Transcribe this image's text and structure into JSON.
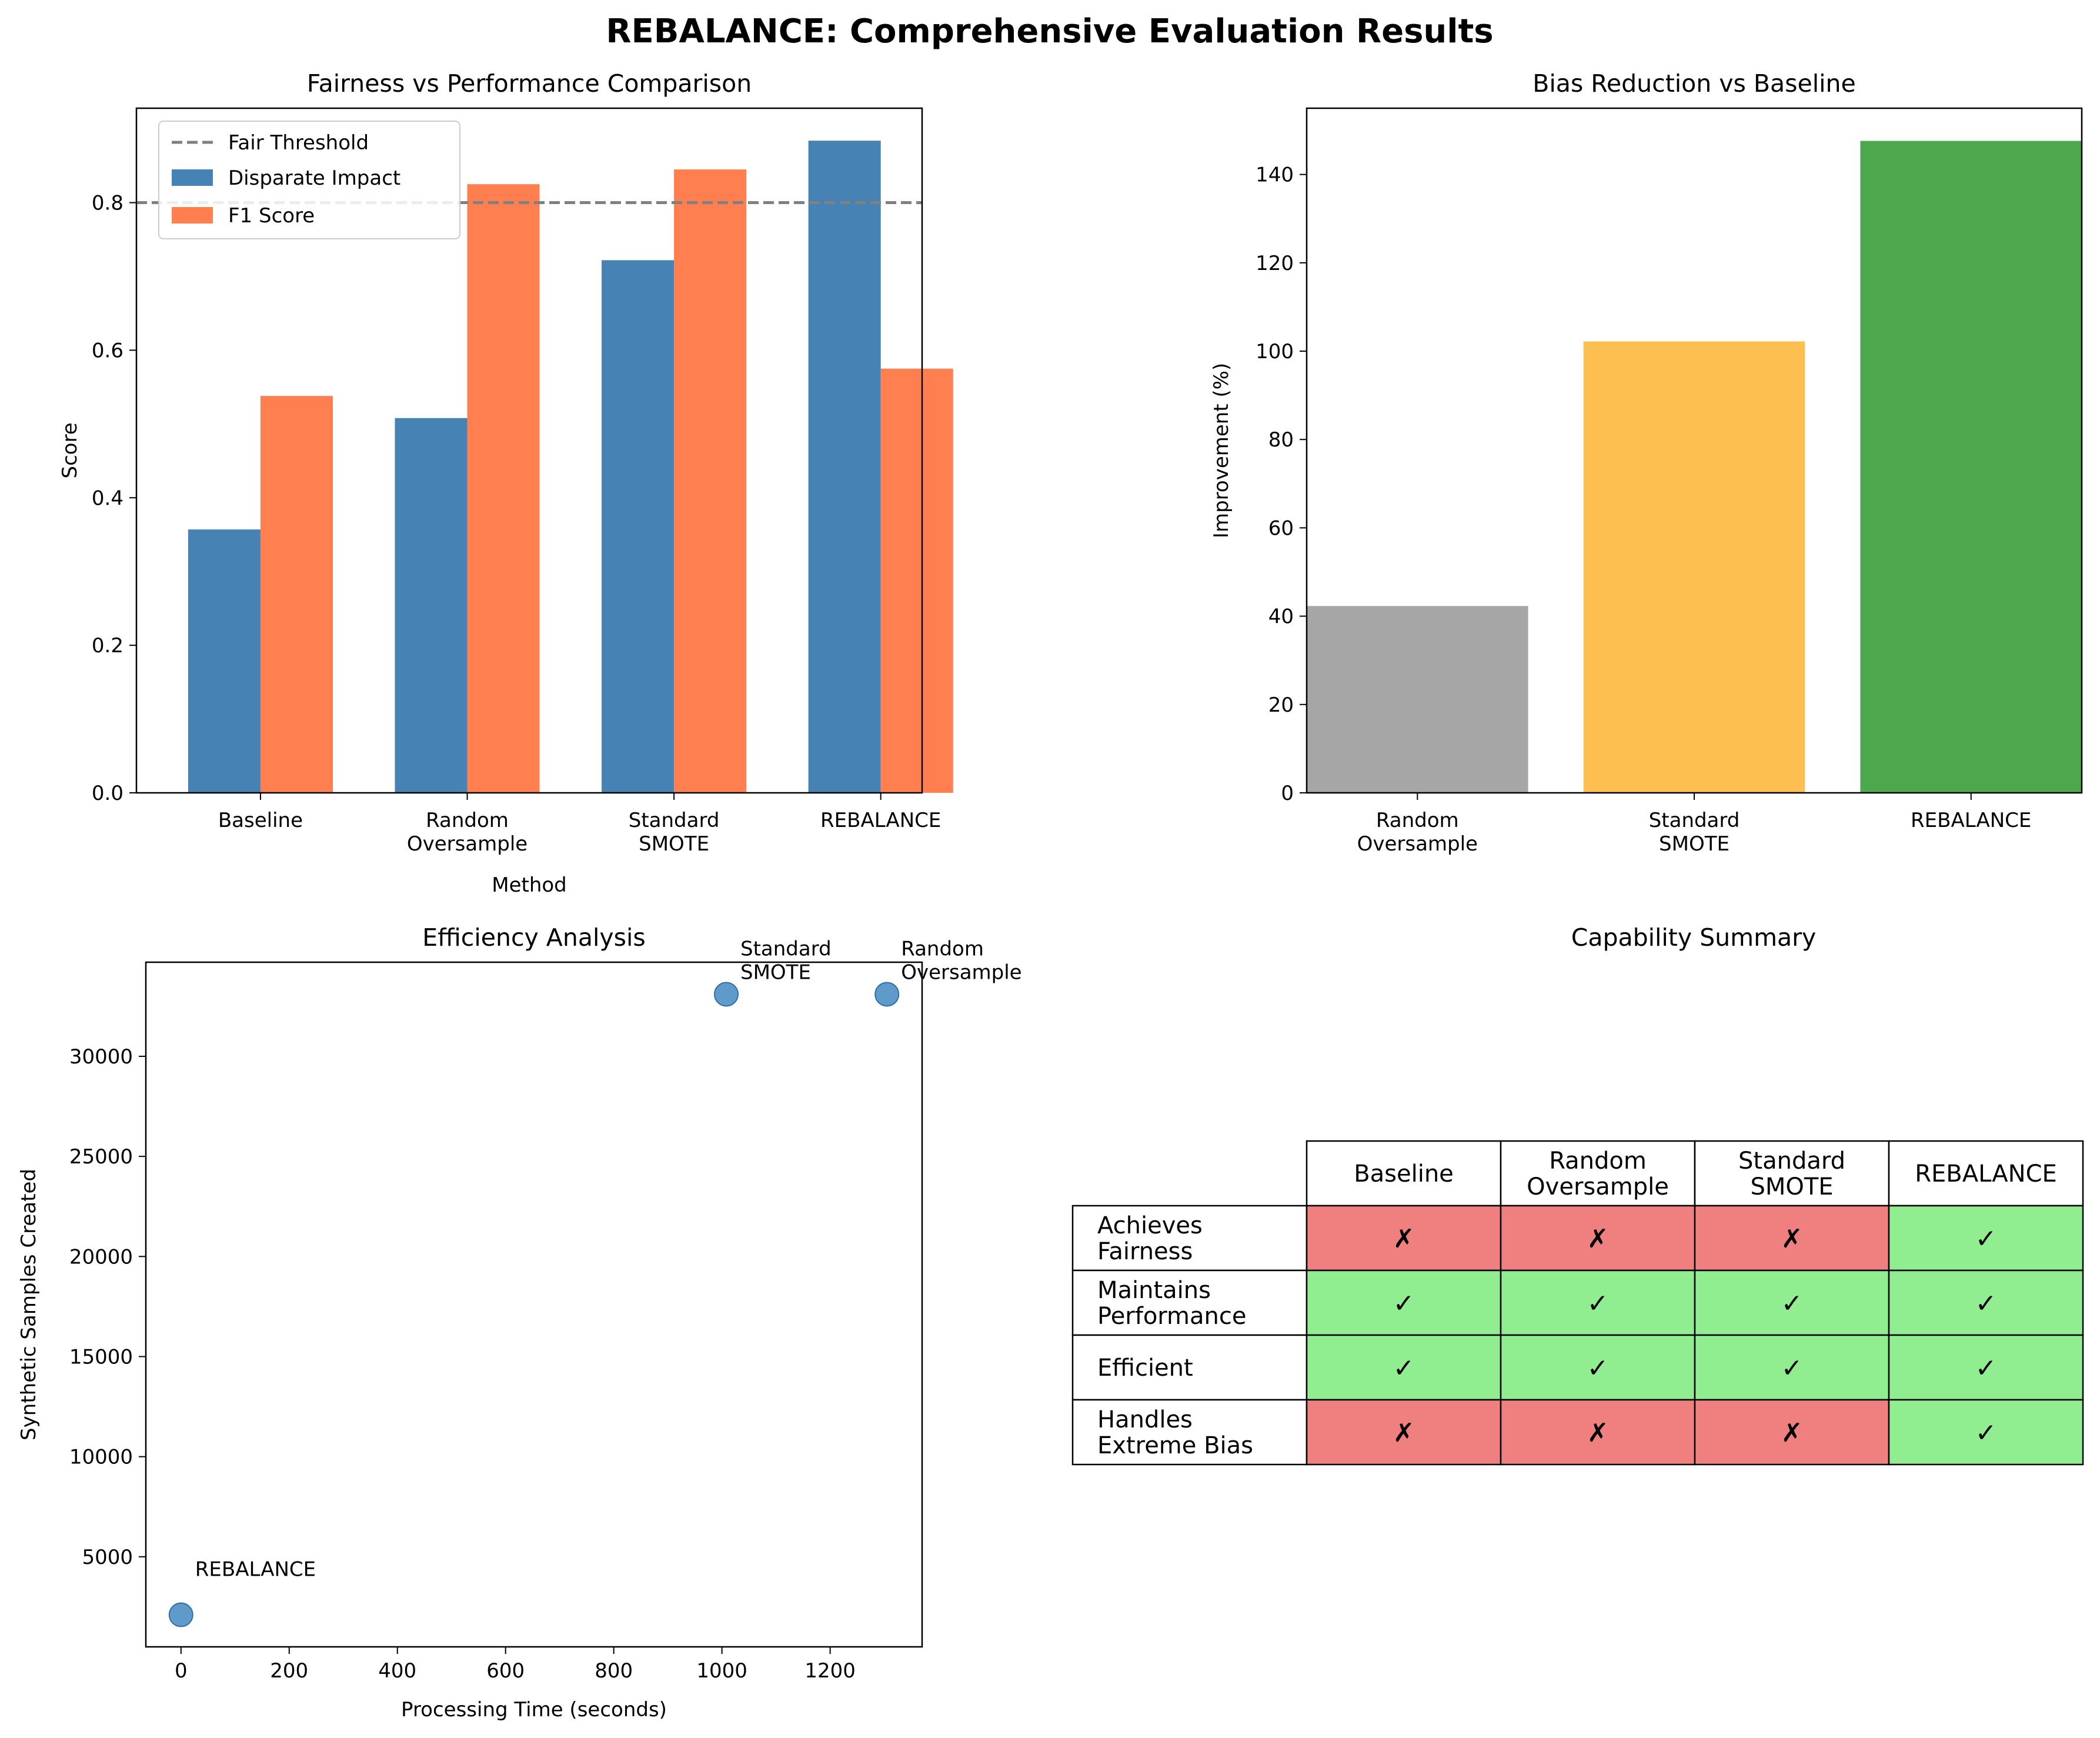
{
  "figure": {
    "title": "REBALANCE: Comprehensive Evaluation Results"
  },
  "chart_data": [
    {
      "id": "fairness",
      "type": "bar",
      "title": "Fairness vs Performance Comparison",
      "xlabel": "Method",
      "ylabel": "Score",
      "categories": [
        "Baseline",
        "Random\nOversample",
        "Standard\nSMOTE",
        "REBALANCE"
      ],
      "series": [
        {
          "name": "Disparate Impact",
          "color": "#4682B4",
          "values": [
            0.357,
            0.508,
            0.722,
            0.884
          ]
        },
        {
          "name": "F1 Score",
          "color": "#FF7F50",
          "values": [
            0.538,
            0.825,
            0.845,
            0.575
          ]
        }
      ],
      "reference_line": {
        "name": "Fair Threshold",
        "value": 0.8,
        "color": "#808080",
        "style": "dashed"
      },
      "ylim": [
        0,
        0.928
      ],
      "yticks": [
        0.0,
        0.2,
        0.4,
        0.6,
        0.8
      ],
      "ytick_labels": [
        "0.0",
        "0.2",
        "0.4",
        "0.6",
        "0.8"
      ],
      "legend": "top-left",
      "grid": false
    },
    {
      "id": "bias",
      "type": "bar",
      "title": "Bias Reduction vs Baseline",
      "xlabel": "",
      "ylabel": "Improvement (%)",
      "categories": [
        "Random\nOversample",
        "Standard\nSMOTE",
        "REBALANCE"
      ],
      "values": [
        42.3,
        102.2,
        147.6
      ],
      "colors": [
        "#A6A6A6",
        "#FDBF4F",
        "#4DA84D"
      ],
      "ylim": [
        0,
        155
      ],
      "yticks": [
        0,
        20,
        40,
        60,
        80,
        100,
        120,
        140
      ],
      "ytick_labels": [
        "0",
        "20",
        "40",
        "60",
        "80",
        "100",
        "120",
        "140"
      ],
      "grid": false
    },
    {
      "id": "efficiency",
      "type": "scatter",
      "title": "Efficiency Analysis",
      "xlabel": "Processing Time (seconds)",
      "ylabel": "Synthetic Samples Created",
      "points": [
        {
          "label": "Standard\nSMOTE",
          "x": 1008,
          "y": 33100
        },
        {
          "label": "Random\nOversample",
          "x": 1305,
          "y": 33100
        },
        {
          "label": "REBALANCE",
          "x": 0,
          "y": 2100
        }
      ],
      "color": "#4C8FC4",
      "xlim": [
        -65,
        1370
      ],
      "ylim": [
        500,
        34700
      ],
      "xticks": [
        0,
        200,
        400,
        600,
        800,
        1000,
        1200
      ],
      "xtick_labels": [
        "0",
        "200",
        "400",
        "600",
        "800",
        "1000",
        "1200"
      ],
      "yticks": [
        5000,
        10000,
        15000,
        20000,
        25000,
        30000
      ],
      "ytick_labels": [
        "5000",
        "10000",
        "15000",
        "20000",
        "25000",
        "30000"
      ],
      "grid": false
    },
    {
      "id": "capability",
      "type": "table",
      "title": "Capability Summary",
      "columns": [
        "Baseline",
        "Random\nOversample",
        "Standard\nSMOTE",
        "REBALANCE"
      ],
      "rows": [
        {
          "label": "Achieves\nFairness",
          "cells": [
            "✗",
            "✗",
            "✗",
            "✓"
          ],
          "colors": [
            "#F08080",
            "#F08080",
            "#F08080",
            "#90EE90"
          ]
        },
        {
          "label": "Maintains\nPerformance",
          "cells": [
            "✓",
            "✓",
            "✓",
            "✓"
          ],
          "colors": [
            "#90EE90",
            "#90EE90",
            "#90EE90",
            "#90EE90"
          ]
        },
        {
          "label": "Efficient",
          "cells": [
            "✓",
            "✓",
            "✓",
            "✓"
          ],
          "colors": [
            "#90EE90",
            "#90EE90",
            "#90EE90",
            "#90EE90"
          ]
        },
        {
          "label": "Handles\nExtreme Bias",
          "cells": [
            "✗",
            "✗",
            "✗",
            "✓"
          ],
          "colors": [
            "#F08080",
            "#F08080",
            "#F08080",
            "#90EE90"
          ]
        }
      ]
    }
  ]
}
